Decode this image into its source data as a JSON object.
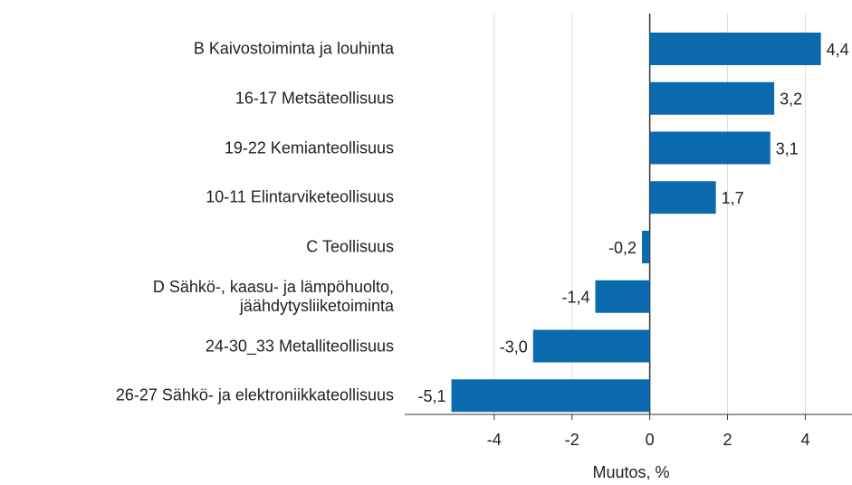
{
  "chart_data": {
    "type": "bar",
    "orientation": "horizontal",
    "categories": [
      "B Kaivostoiminta ja louhinta",
      "16-17 Metsäteollisuus",
      "19-22 Kemianteollisuus",
      "10-11 Elintarviketeollisuus",
      "C Teollisuus",
      "D Sähkö-, kaasu- ja lämpöhuolto,\njäähdytysliiketoiminta",
      "24-30_33 Metalliteollisuus",
      "26-27 Sähkö- ja elektroniikkateollisuus"
    ],
    "values": [
      4.4,
      3.2,
      3.1,
      1.7,
      -0.2,
      -1.4,
      -3.0,
      -5.1
    ],
    "value_labels": [
      "4,4",
      "3,2",
      "3,1",
      "1,7",
      "-0,2",
      "-1,4",
      "-3,0",
      "-5,1"
    ],
    "color": "#0b6aad",
    "xlabel": "Muutos, %",
    "xlim": [
      -6.3,
      5.2
    ],
    "xticks": [
      -4,
      -2,
      0,
      2,
      4
    ],
    "grid": true
  }
}
